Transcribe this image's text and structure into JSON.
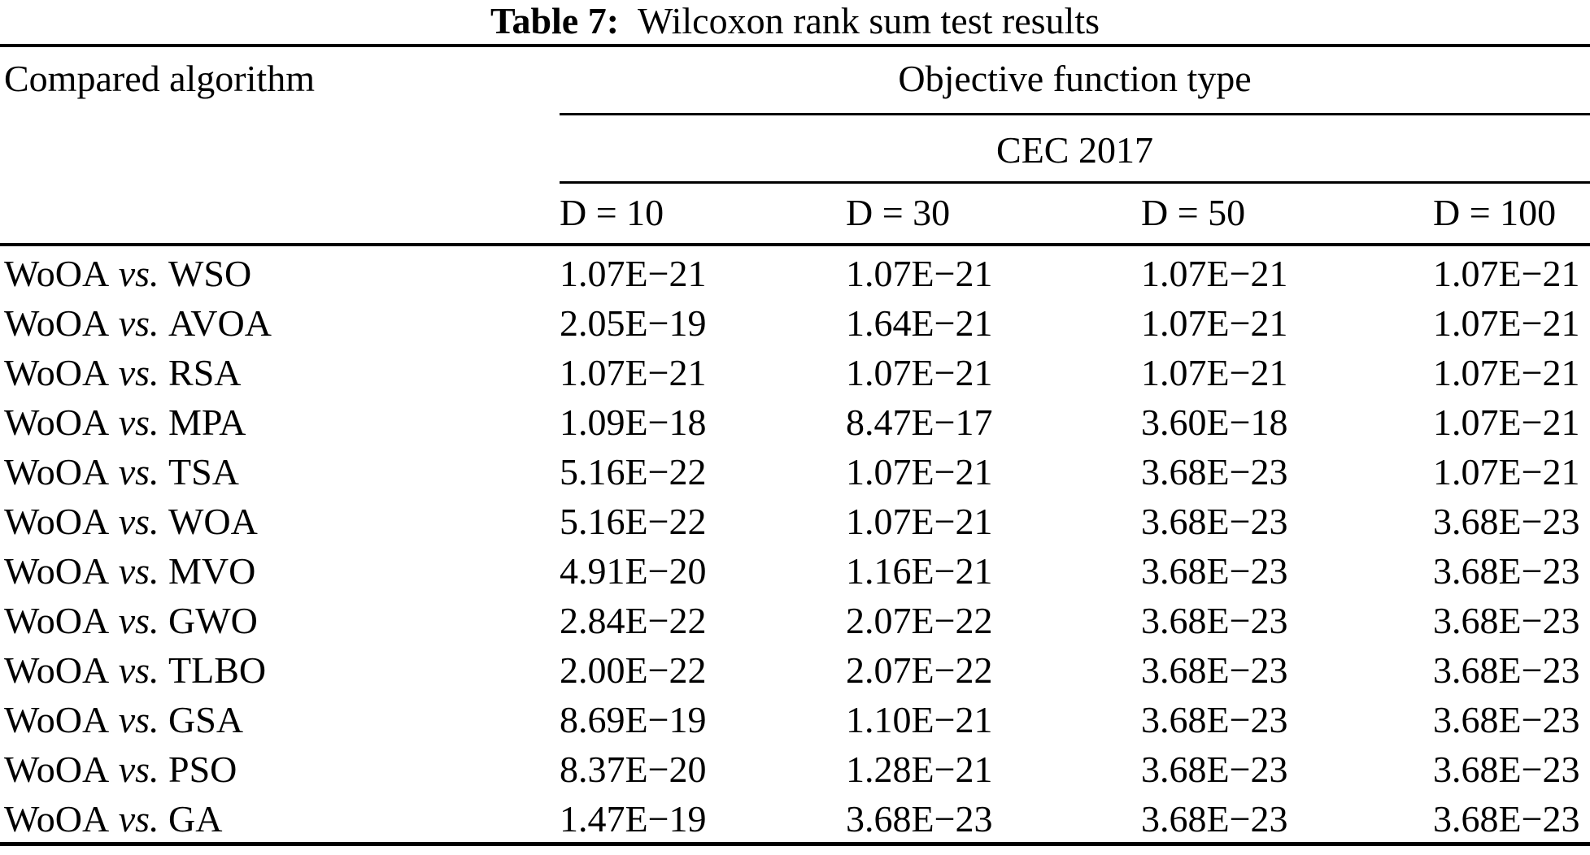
{
  "caption": {
    "label": "Table 7:",
    "title": "Wilcoxon rank sum test results"
  },
  "table": {
    "col1_header": "Compared algorithm",
    "group_header": "Objective function type",
    "subgroup_header": "CEC 2017",
    "dim_headers": [
      "D = 10",
      "D = 30",
      "D = 50",
      "D = 100"
    ],
    "rows": [
      {
        "base": "WoOA",
        "vs": "vs.",
        "opponent": "WSO",
        "values": [
          "1.07E−21",
          "1.07E−21",
          "1.07E−21",
          "1.07E−21"
        ]
      },
      {
        "base": "WoOA",
        "vs": "vs.",
        "opponent": "AVOA",
        "values": [
          "2.05E−19",
          "1.64E−21",
          "1.07E−21",
          "1.07E−21"
        ]
      },
      {
        "base": "WoOA",
        "vs": "vs.",
        "opponent": "RSA",
        "values": [
          "1.07E−21",
          "1.07E−21",
          "1.07E−21",
          "1.07E−21"
        ]
      },
      {
        "base": "WoOA",
        "vs": "vs.",
        "opponent": "MPA",
        "values": [
          "1.09E−18",
          "8.47E−17",
          "3.60E−18",
          "1.07E−21"
        ]
      },
      {
        "base": "WoOA",
        "vs": "vs.",
        "opponent": "TSA",
        "values": [
          "5.16E−22",
          "1.07E−21",
          "3.68E−23",
          "1.07E−21"
        ]
      },
      {
        "base": "WoOA",
        "vs": "vs.",
        "opponent": "WOA",
        "values": [
          "5.16E−22",
          "1.07E−21",
          "3.68E−23",
          "3.68E−23"
        ]
      },
      {
        "base": "WoOA",
        "vs": "vs.",
        "opponent": "MVO",
        "values": [
          "4.91E−20",
          "1.16E−21",
          "3.68E−23",
          "3.68E−23"
        ]
      },
      {
        "base": "WoOA",
        "vs": "vs.",
        "opponent": "GWO",
        "values": [
          "2.84E−22",
          "2.07E−22",
          "3.68E−23",
          "3.68E−23"
        ]
      },
      {
        "base": "WoOA",
        "vs": "vs.",
        "opponent": "TLBO",
        "values": [
          "2.00E−22",
          "2.07E−22",
          "3.68E−23",
          "3.68E−23"
        ]
      },
      {
        "base": "WoOA",
        "vs": "vs.",
        "opponent": "GSA",
        "values": [
          "8.69E−19",
          "1.10E−21",
          "3.68E−23",
          "3.68E−23"
        ]
      },
      {
        "base": "WoOA",
        "vs": "vs.",
        "opponent": "PSO",
        "values": [
          "8.37E−20",
          "1.28E−21",
          "3.68E−23",
          "3.68E−23"
        ]
      },
      {
        "base": "WoOA",
        "vs": "vs.",
        "opponent": "GA",
        "values": [
          "1.47E−19",
          "3.68E−23",
          "3.68E−23",
          "3.68E−23"
        ]
      }
    ]
  },
  "colors": {
    "background": "#ffffff",
    "text": "#000000",
    "rule": "#000000"
  }
}
